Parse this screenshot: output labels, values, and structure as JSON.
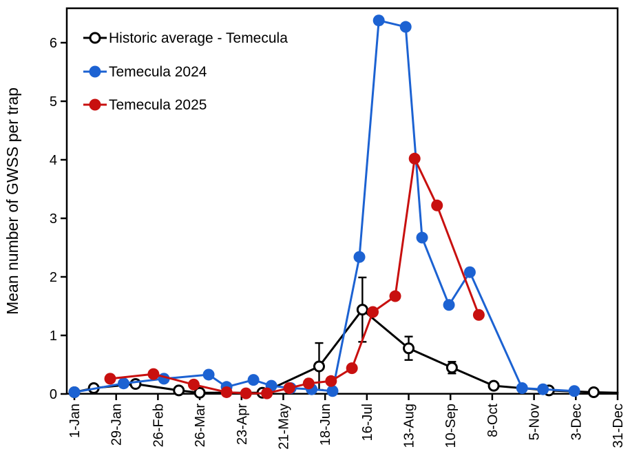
{
  "chart_data": {
    "type": "line",
    "title": "",
    "xlabel": "",
    "ylabel": "Mean number of GWSS per trap",
    "ylim": [
      0,
      6.6
    ],
    "grid": false,
    "legend_position": "inside top-left",
    "yticks": [
      {
        "value": 0,
        "label": "0"
      },
      {
        "value": 1,
        "label": "1"
      },
      {
        "value": 2,
        "label": "2"
      },
      {
        "value": 3,
        "label": "3"
      },
      {
        "value": 4,
        "label": "4"
      },
      {
        "value": 5,
        "label": "5"
      },
      {
        "value": 6,
        "label": "6"
      }
    ],
    "xticks": [
      {
        "day": 0,
        "label": "1-Jan"
      },
      {
        "day": 28,
        "label": "29-Jan"
      },
      {
        "day": 56,
        "label": "26-Feb"
      },
      {
        "day": 84,
        "label": "26-Mar"
      },
      {
        "day": 112,
        "label": "23-Apr"
      },
      {
        "day": 140,
        "label": "21-May"
      },
      {
        "day": 168,
        "label": "18-Jun"
      },
      {
        "day": 196,
        "label": "16-Jul"
      },
      {
        "day": 224,
        "label": "13-Aug"
      },
      {
        "day": 252,
        "label": "10-Sep"
      },
      {
        "day": 280,
        "label": "8-Oct"
      },
      {
        "day": 308,
        "label": "5-Nov"
      },
      {
        "day": 336,
        "label": "3-Dec"
      },
      {
        "day": 364,
        "label": "31-Dec"
      }
    ],
    "series": [
      {
        "name": "Historic average - Temecula",
        "color": "#000000",
        "marker": "open-circle",
        "points": [
          {
            "date": "1-Jan",
            "day": 0,
            "value": 0.03
          },
          {
            "date": "14-Jan",
            "day": 13,
            "value": 0.1
          },
          {
            "date": "11-Feb",
            "day": 41,
            "value": 0.17
          },
          {
            "date": "12-Mar",
            "day": 70,
            "value": 0.06
          },
          {
            "date": "26-Mar",
            "day": 84,
            "value": 0.02
          },
          {
            "date": "7-May",
            "day": 126,
            "value": 0.02
          },
          {
            "date": "14-Jun",
            "day": 164,
            "value": 0.47,
            "error": 0.4
          },
          {
            "date": "13-Jul",
            "day": 193,
            "value": 1.44,
            "error": 0.55
          },
          {
            "date": "13-Aug",
            "day": 224,
            "value": 0.78,
            "error": 0.2
          },
          {
            "date": "11-Sep",
            "day": 253,
            "value": 0.45,
            "error": 0.1
          },
          {
            "date": "9-Oct",
            "day": 281,
            "value": 0.14
          },
          {
            "date": "15-Nov",
            "day": 318,
            "value": 0.06
          },
          {
            "date": "15-Dec",
            "day": 348,
            "value": 0.03
          },
          {
            "date": "31-Dec",
            "day": 364,
            "value": 0.02,
            "line_only": true
          }
        ]
      },
      {
        "name": "Temecula 2024",
        "color": "#1c62d2",
        "marker": "filled-circle",
        "points": [
          {
            "date": "1-Jan",
            "day": 0,
            "value": 0.03
          },
          {
            "date": "3-Feb",
            "day": 33,
            "value": 0.18
          },
          {
            "date": "2-Mar",
            "day": 60,
            "value": 0.26
          },
          {
            "date": "1-Apr",
            "day": 90,
            "value": 0.33
          },
          {
            "date": "13-Apr",
            "day": 102,
            "value": 0.12
          },
          {
            "date": "1-May",
            "day": 120,
            "value": 0.24
          },
          {
            "date": "13-May",
            "day": 132,
            "value": 0.14
          },
          {
            "date": "26-May",
            "day": 145,
            "value": 0.1
          },
          {
            "date": "9-Jun",
            "day": 159,
            "value": 0.08
          },
          {
            "date": "23-Jun",
            "day": 173,
            "value": 0.05
          },
          {
            "date": "11-Jul",
            "day": 191,
            "value": 2.34
          },
          {
            "date": "24-Jul",
            "day": 204,
            "value": 6.38
          },
          {
            "date": "11-Aug",
            "day": 222,
            "value": 6.27
          },
          {
            "date": "22-Aug",
            "day": 233,
            "value": 2.67
          },
          {
            "date": "9-Sep",
            "day": 251,
            "value": 1.52
          },
          {
            "date": "23-Sep",
            "day": 265,
            "value": 2.08
          },
          {
            "date": "28-Oct",
            "day": 300,
            "value": 0.1
          },
          {
            "date": "11-Nov",
            "day": 314,
            "value": 0.08
          },
          {
            "date": "2-Dec",
            "day": 335,
            "value": 0.05
          }
        ]
      },
      {
        "name": "Temecula 2025",
        "color": "#c8100f",
        "marker": "filled-circle",
        "points": [
          {
            "date": "25-Jan",
            "day": 24,
            "value": 0.26
          },
          {
            "date": "23-Feb",
            "day": 53,
            "value": 0.34
          },
          {
            "date": "22-Mar",
            "day": 80,
            "value": 0.16
          },
          {
            "date": "13-Apr",
            "day": 102,
            "value": 0.03
          },
          {
            "date": "26-Apr",
            "day": 115,
            "value": 0.01
          },
          {
            "date": "10-May",
            "day": 129,
            "value": 0.01
          },
          {
            "date": "25-May",
            "day": 144,
            "value": 0.1
          },
          {
            "date": "7-Jun",
            "day": 157,
            "value": 0.18
          },
          {
            "date": "22-Jun",
            "day": 172,
            "value": 0.22
          },
          {
            "date": "6-Jul",
            "day": 186,
            "value": 0.44
          },
          {
            "date": "20-Jul",
            "day": 200,
            "value": 1.4
          },
          {
            "date": "4-Aug",
            "day": 215,
            "value": 1.67
          },
          {
            "date": "17-Aug",
            "day": 228,
            "value": 4.02
          },
          {
            "date": "1-Sep",
            "day": 243,
            "value": 3.22
          },
          {
            "date": "29-Sep",
            "day": 271,
            "value": 1.35
          }
        ]
      }
    ]
  }
}
